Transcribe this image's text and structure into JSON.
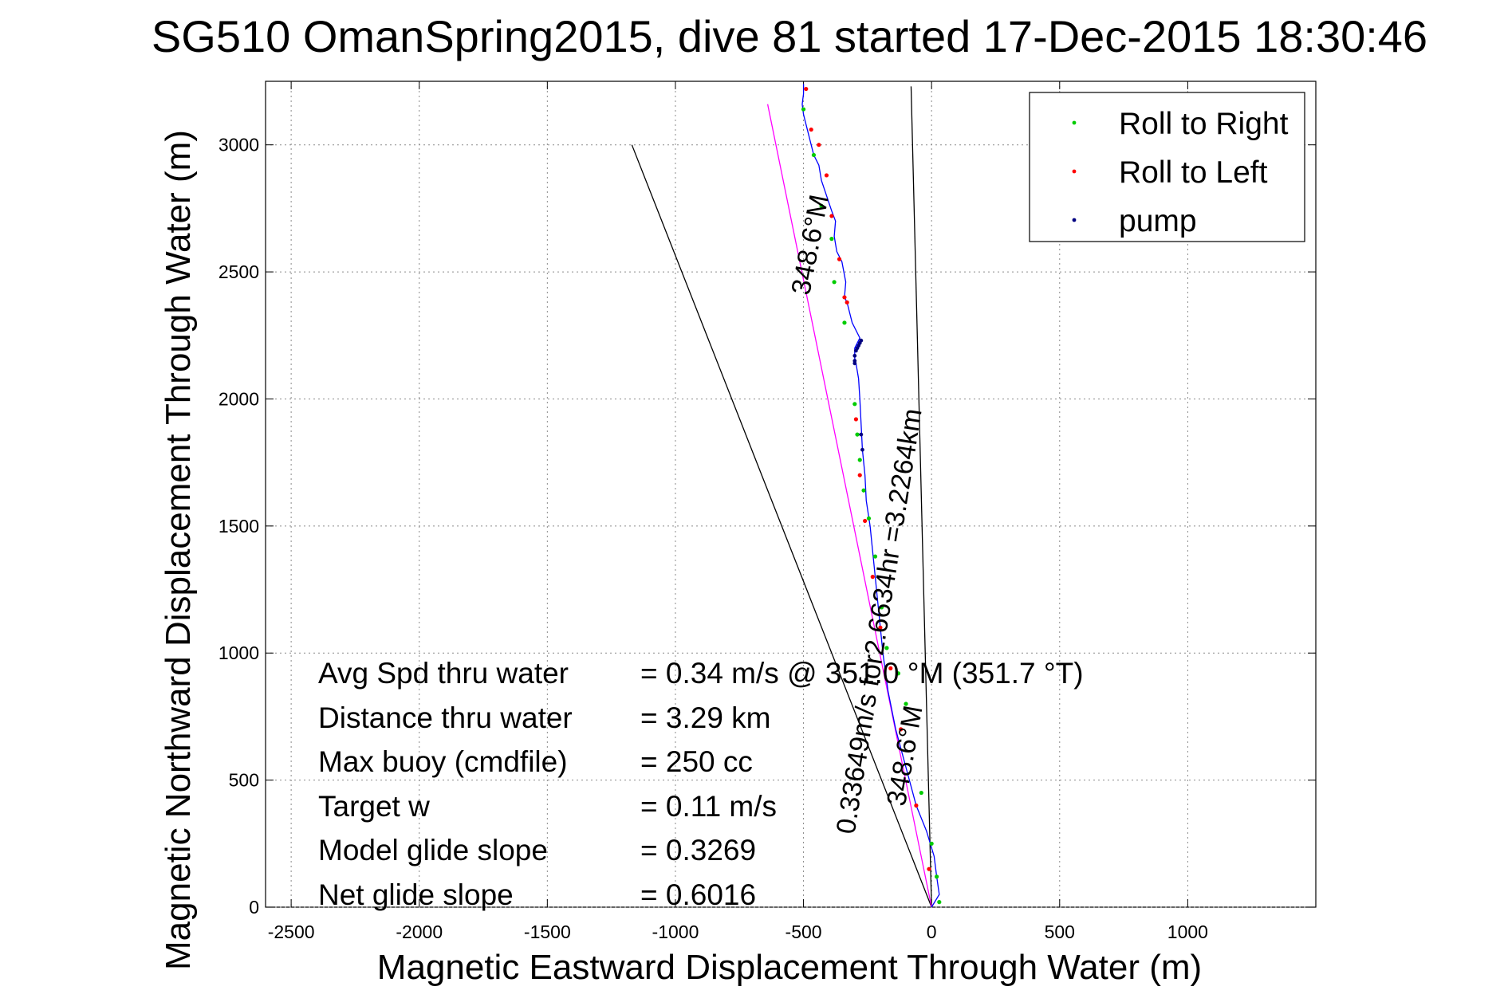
{
  "chart_data": {
    "type": "scatter",
    "title": "SG510 OmanSpring2015, dive 81 started 17-Dec-2015 18:30:46",
    "xlabel": "Magnetic Eastward Displacement Through Water (m)",
    "ylabel": "Magnetic Northward Displacement Through Water (m)",
    "xlim": [
      -2600,
      1500
    ],
    "ylim": [
      0,
      3250
    ],
    "xticks": [
      -2500,
      -2000,
      -1500,
      -1000,
      -500,
      0,
      500,
      1000
    ],
    "yticks": [
      0,
      500,
      1000,
      1500,
      2000,
      2500,
      3000
    ],
    "grid": true,
    "legend_position": "top-right",
    "legend": [
      {
        "label": "Roll to Right",
        "color": "#00cc00"
      },
      {
        "label": "Roll to Left",
        "color": "#ff0000"
      },
      {
        "label": "pump",
        "color": "#000080"
      }
    ],
    "track": {
      "name": "glider track",
      "color": "#0000ff",
      "x": [
        0,
        30,
        20,
        10,
        -20,
        -60,
        -100,
        -140,
        -170,
        -190,
        -200,
        -210,
        -220,
        -230,
        -240,
        -255,
        -260,
        -270,
        -275,
        -280,
        -285,
        -295,
        -300,
        -300,
        -290,
        -280,
        -310,
        -330,
        -340,
        -335,
        -350,
        -370,
        -380,
        -375,
        -390,
        -410,
        -430,
        -440,
        -460,
        -470,
        -480,
        -490,
        -500,
        -505,
        -500,
        -500
      ],
      "y": [
        0,
        50,
        120,
        200,
        300,
        400,
        550,
        700,
        850,
        1000,
        1100,
        1200,
        1300,
        1400,
        1500,
        1600,
        1700,
        1800,
        1900,
        2000,
        2080,
        2140,
        2160,
        2200,
        2220,
        2240,
        2300,
        2380,
        2400,
        2460,
        2540,
        2580,
        2640,
        2700,
        2740,
        2800,
        2860,
        2920,
        2960,
        3000,
        3040,
        3080,
        3120,
        3160,
        3200,
        3240
      ]
    },
    "roll_right": {
      "x": [
        30,
        20,
        0,
        -40,
        -100,
        -130,
        -175,
        -195,
        -220,
        -245,
        -265,
        -280,
        -290,
        -300,
        -340,
        -380,
        -390,
        -430,
        -460,
        -500
      ],
      "y": [
        20,
        120,
        250,
        450,
        800,
        920,
        1020,
        1180,
        1380,
        1530,
        1640,
        1760,
        1860,
        1980,
        2300,
        2460,
        2630,
        2760,
        2960,
        3140
      ]
    },
    "roll_left": {
      "x": [
        -10,
        -60,
        -120,
        -160,
        -200,
        -230,
        -260,
        -280,
        -295,
        -330,
        -340,
        -360,
        -390,
        -410,
        -440,
        -470,
        -490
      ],
      "y": [
        150,
        400,
        700,
        940,
        1100,
        1300,
        1520,
        1700,
        1920,
        2380,
        2400,
        2550,
        2720,
        2880,
        3000,
        3060,
        3220
      ]
    },
    "pump": {
      "x": [
        -300,
        -300,
        -295,
        -290,
        -285,
        -280,
        -275,
        -275,
        -270,
        -300
      ],
      "y": [
        2150,
        2170,
        2190,
        2200,
        2210,
        2220,
        2230,
        1860,
        1800,
        2140
      ]
    },
    "reference_lines": [
      {
        "name": "model glide cone left",
        "color": "#000000",
        "x": [
          0,
          -1170
        ],
        "y": [
          0,
          3000
        ]
      },
      {
        "name": "model glide cone right",
        "color": "#000000",
        "x": [
          0,
          -80
        ],
        "y": [
          0,
          3230
        ]
      },
      {
        "name": "avg heading line",
        "color": "#ff00ff",
        "x": [
          0,
          -640
        ],
        "y": [
          0,
          3160
        ]
      }
    ],
    "rotated_labels": [
      {
        "text": "348.6°M",
        "x": -440,
        "y": 2600,
        "angle": -79
      },
      {
        "text": "0.33649m/s for2.6634hr =3.2264km",
        "x": -170,
        "y": 1120,
        "angle": -81
      },
      {
        "text": "348.6°M",
        "x": -70,
        "y": 590,
        "angle": -80
      }
    ]
  },
  "annotations": [
    {
      "label": "Avg Spd thru water",
      "value": "=  0.34 m/s @ 351.0 °M (351.7 °T)"
    },
    {
      "label": "Distance thru water",
      "value": "=  3.29 km"
    },
    {
      "label": "Max buoy (cmdfile)",
      "value": "= 250 cc"
    },
    {
      "label": "Target w",
      "value": "= 0.11 m/s"
    },
    {
      "label": "Model glide slope",
      "value": "= 0.3269"
    },
    {
      "label": "Net glide slope",
      "value": "= 0.6016"
    }
  ]
}
